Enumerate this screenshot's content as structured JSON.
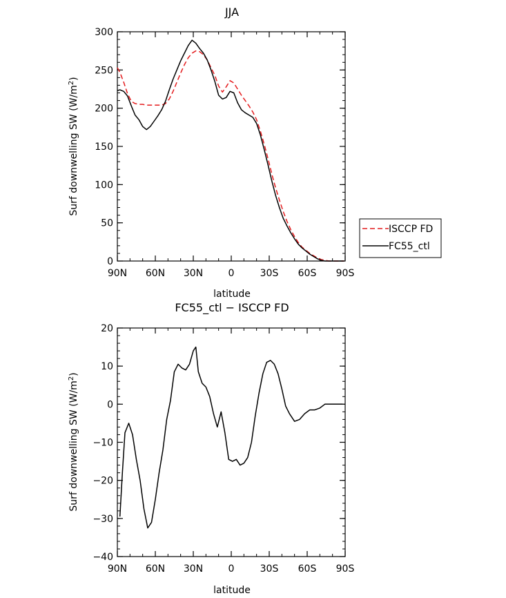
{
  "chart_data": [
    {
      "type": "line",
      "title": "JJA",
      "xlabel": "latitude",
      "ylabel": "Surf downwelling SW (W/m²)",
      "ylabel_parts": {
        "text": "Surf downwelling SW (W/m",
        "sup": "2",
        "close": ")"
      },
      "xlim": [
        90,
        -90
      ],
      "ylim": [
        0,
        300
      ],
      "xticks": [
        90,
        60,
        30,
        0,
        -30,
        -60,
        -90
      ],
      "xtick_labels": [
        "90N",
        "60N",
        "30N",
        "0",
        "30S",
        "60S",
        "90S"
      ],
      "yticks": [
        0,
        50,
        100,
        150,
        200,
        250,
        300
      ],
      "ytick_labels": [
        "0",
        "50",
        "100",
        "150",
        "200",
        "250",
        "300"
      ],
      "legend": {
        "placement": "right"
      },
      "series": [
        {
          "name": "ISCCP FD",
          "color": "#e41a1c",
          "dash": true,
          "x": [
            90,
            88,
            85,
            82,
            79,
            76,
            73,
            70,
            67,
            64,
            61,
            58,
            55,
            52,
            49,
            46,
            43,
            40,
            37,
            34,
            31,
            28,
            25,
            22,
            19,
            16,
            13,
            10,
            7,
            4,
            1,
            -2,
            -5,
            -8,
            -11,
            -14,
            -17,
            -20,
            -23,
            -26,
            -29,
            -32,
            -35,
            -38,
            -41,
            -44,
            -47,
            -50,
            -53,
            -56,
            -59,
            -62,
            -65,
            -68,
            -71,
            -74,
            -77,
            -80,
            -83,
            -86,
            -89
          ],
          "y": [
            253,
            247,
            234,
            219,
            209,
            206,
            205,
            205,
            204,
            204,
            204,
            204,
            204,
            206,
            212,
            222,
            234,
            246,
            257,
            266,
            272,
            275,
            274,
            270,
            263,
            253,
            243,
            229,
            221,
            228,
            236,
            233,
            225,
            217,
            210,
            203,
            195,
            185,
            170,
            153,
            134,
            114,
            96,
            80,
            65,
            52,
            41,
            32,
            24,
            18,
            14,
            10,
            7,
            4,
            2,
            1,
            0,
            0,
            0,
            0,
            0
          ]
        },
        {
          "name": "FC55_ctl",
          "color": "#000000",
          "dash": false,
          "x": [
            90,
            88,
            85,
            82,
            79,
            76,
            73,
            70,
            67,
            64,
            61,
            58,
            55,
            52,
            49,
            46,
            43,
            40,
            37,
            34,
            31,
            28,
            25,
            22,
            19,
            16,
            13,
            10,
            7,
            4,
            1,
            -2,
            -5,
            -8,
            -11,
            -14,
            -17,
            -20,
            -23,
            -26,
            -29,
            -32,
            -35,
            -38,
            -41,
            -44,
            -47,
            -50,
            -53,
            -56,
            -59,
            -62,
            -65,
            -68,
            -71,
            -74,
            -77,
            -80,
            -83,
            -86,
            -89
          ],
          "y": [
            223,
            224,
            222,
            216,
            203,
            191,
            185,
            176,
            172,
            176,
            183,
            190,
            198,
            209,
            224,
            238,
            250,
            262,
            272,
            282,
            289,
            285,
            278,
            272,
            263,
            250,
            235,
            217,
            212,
            214,
            222,
            220,
            207,
            198,
            194,
            191,
            188,
            180,
            165,
            146,
            126,
            105,
            86,
            70,
            56,
            46,
            37,
            29,
            22,
            17,
            13,
            9,
            6,
            3,
            1,
            0,
            0,
            0,
            0,
            0,
            0
          ]
        }
      ]
    },
    {
      "type": "line",
      "title": "FC55_ctl − ISCCP FD",
      "xlabel": "latitude",
      "ylabel": "Surf downwelling SW (W/m²)",
      "ylabel_parts": {
        "text": "Surf downwelling SW (W/m",
        "sup": "2",
        "close": ")"
      },
      "xlim": [
        90,
        -90
      ],
      "ylim": [
        -40,
        20
      ],
      "xticks": [
        90,
        60,
        30,
        0,
        -30,
        -60,
        -90
      ],
      "xtick_labels": [
        "90N",
        "60N",
        "30N",
        "0",
        "30S",
        "60S",
        "90S"
      ],
      "yticks": [
        -40,
        -30,
        -20,
        -10,
        0,
        10,
        20
      ],
      "ytick_labels": [
        "−40",
        "−30",
        "−20",
        "−10",
        "0",
        "10",
        "20"
      ],
      "series": [
        {
          "color": "#000000",
          "dash": false,
          "x": [
            88,
            86,
            84,
            81,
            78,
            75,
            72,
            69,
            66,
            63,
            60,
            57,
            54,
            51,
            48,
            45,
            42,
            39,
            36,
            33,
            30,
            28,
            26,
            23,
            20,
            17,
            14,
            11,
            8,
            5,
            2,
            -1,
            -4,
            -7,
            -10,
            -13,
            -16,
            -19,
            -22,
            -25,
            -28,
            -31,
            -34,
            -37,
            -40,
            -43,
            -46,
            -50,
            -54,
            -58,
            -62,
            -66,
            -70,
            -74,
            -78,
            -82,
            -86,
            -88
          ],
          "y": [
            -29.5,
            -18,
            -7.5,
            -5,
            -8,
            -14.5,
            -20,
            -27.5,
            -32.5,
            -31,
            -25,
            -18,
            -12,
            -4,
            1,
            8.5,
            10.5,
            9.5,
            9,
            10.5,
            14,
            15,
            8.5,
            5.5,
            4.5,
            2,
            -2.5,
            -6,
            -2,
            -7.5,
            -14.5,
            -15,
            -14.5,
            -16,
            -15.5,
            -14,
            -10,
            -3,
            3,
            8,
            11,
            11.5,
            10.5,
            8,
            4,
            -0.5,
            -2.5,
            -4.5,
            -4,
            -2.5,
            -1.5,
            -1.5,
            -1,
            0,
            0,
            0,
            0,
            0
          ]
        }
      ]
    }
  ]
}
